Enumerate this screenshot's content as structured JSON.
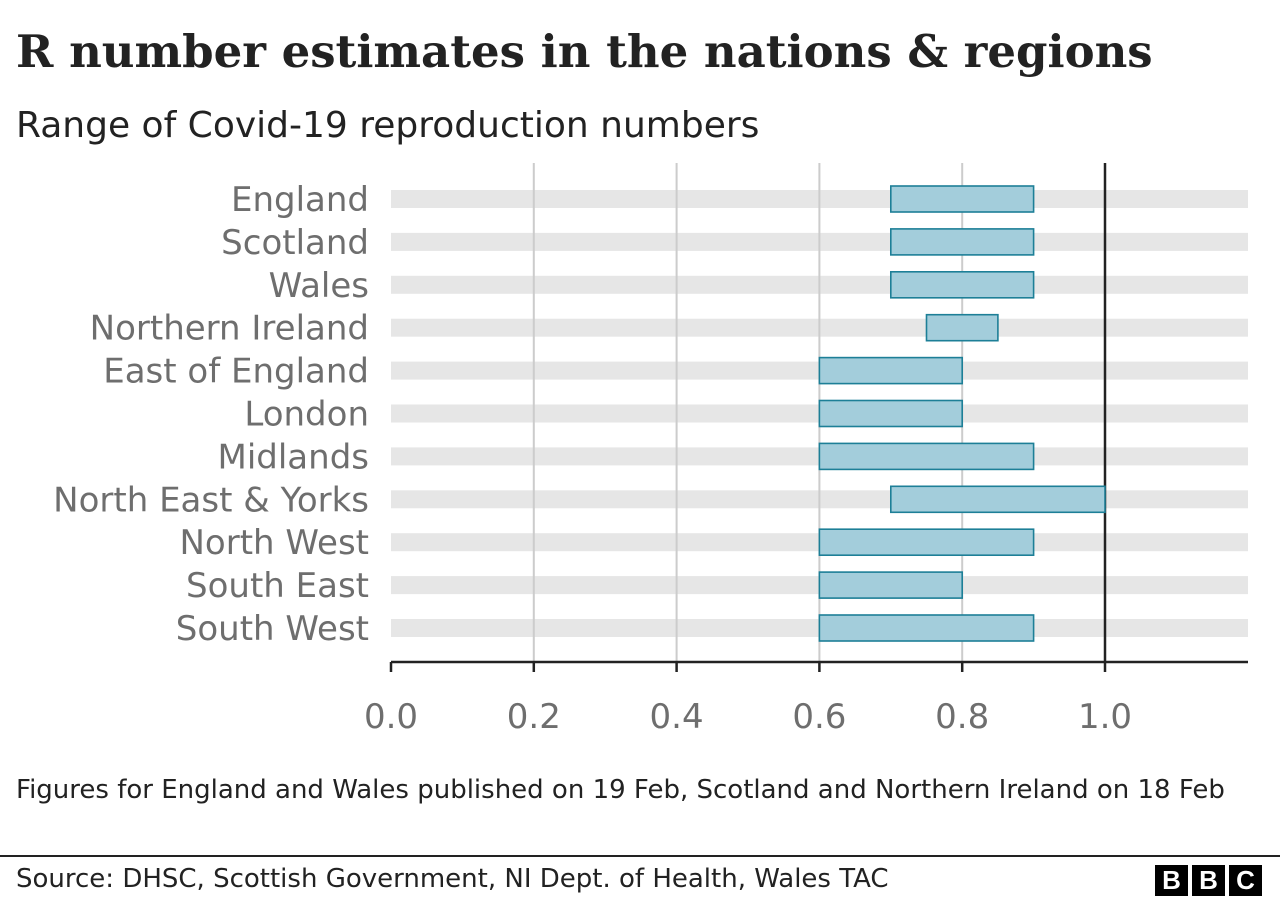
{
  "header": {
    "title": "R number estimates in the nations & regions",
    "subtitle": "Range of Covid-19 reproduction numbers"
  },
  "chart_data": {
    "type": "bar",
    "orientation": "horizontal",
    "bar_style": "range",
    "title": "R number estimates in the nations & regions",
    "subtitle": "Range of Covid-19 reproduction numbers",
    "xlabel": "",
    "ylabel": "",
    "xlim": [
      0,
      1.2
    ],
    "x_ticks": [
      0.0,
      0.2,
      0.4,
      0.6,
      0.8,
      1.0
    ],
    "x_tick_labels": [
      "0.0",
      "0.2",
      "0.4",
      "0.6",
      "0.8",
      "1.0"
    ],
    "reference_line": 1.0,
    "grid": true,
    "legend": "none",
    "categories": [
      "England",
      "Scotland",
      "Wales",
      "Northern Ireland",
      "East of England",
      "London",
      "Midlands",
      "North East & Yorks",
      "North West",
      "South East",
      "South West"
    ],
    "ranges": [
      [
        0.7,
        0.9
      ],
      [
        0.7,
        0.9
      ],
      [
        0.7,
        0.9
      ],
      [
        0.75,
        0.85
      ],
      [
        0.6,
        0.8
      ],
      [
        0.6,
        0.8
      ],
      [
        0.6,
        0.9
      ],
      [
        0.7,
        1.0
      ],
      [
        0.6,
        0.9
      ],
      [
        0.6,
        0.8
      ],
      [
        0.6,
        0.9
      ]
    ],
    "colors": {
      "bar_fill": "#a3cddb",
      "bar_stroke": "#1d7f97",
      "track": "#e6e6e6",
      "gridline": "#cccccc",
      "reference_line": "#222222",
      "axis": "#222222",
      "label_text": "#6e6e6e"
    }
  },
  "footer": {
    "note": "Figures for England and Wales published on 19 Feb, Scotland and Northern Ireland on 18 Feb",
    "source": "Source: DHSC, Scottish Government, NI Dept. of Health, Wales TAC",
    "logo_letters": [
      "B",
      "B",
      "C"
    ]
  }
}
